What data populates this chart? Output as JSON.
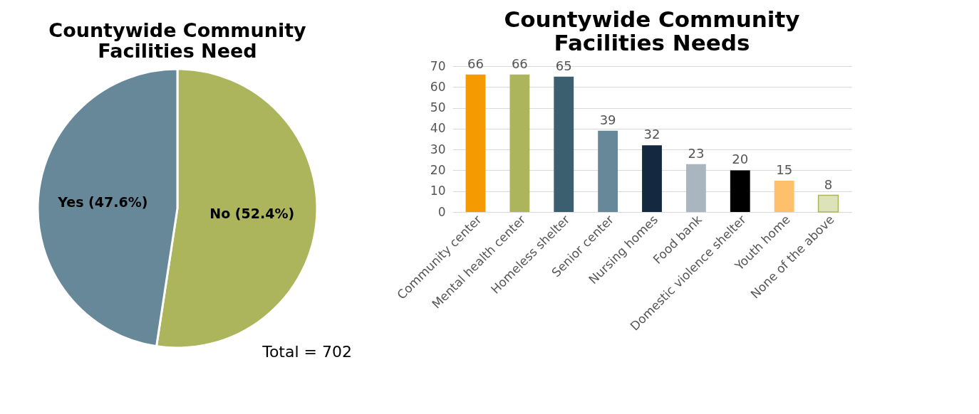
{
  "chart_data": [
    {
      "type": "pie",
      "title": "Countywide Community\nFacilities Need",
      "categories": [
        "No (52.4%)",
        "Yes (47.6%)"
      ],
      "values": [
        52.4,
        47.6
      ],
      "colors": [
        "#adb55c",
        "#678899"
      ],
      "annotations": [
        "Total = 702"
      ]
    },
    {
      "type": "bar",
      "title": "Countywide Community\nFacilities Needs",
      "categories": [
        "Community center",
        "Mental health center",
        "Homeless shelter",
        "Senior center",
        "Nursing homes",
        "Food bank",
        "Domestic violence shelter",
        "Youth home",
        "None of the above"
      ],
      "values": [
        66,
        66,
        65,
        39,
        32,
        23,
        20,
        15,
        8
      ],
      "colors": [
        "#f59a00",
        "#adb55c",
        "#3b5f6e",
        "#678899",
        "#14293f",
        "#aab6bf",
        "#000000",
        "#ffc06b",
        "#dde3b8"
      ],
      "ylim": [
        0,
        70
      ],
      "yticks": [
        0,
        10,
        20,
        30,
        40,
        50,
        60,
        70
      ],
      "grid": "y",
      "data_labels": true
    }
  ]
}
